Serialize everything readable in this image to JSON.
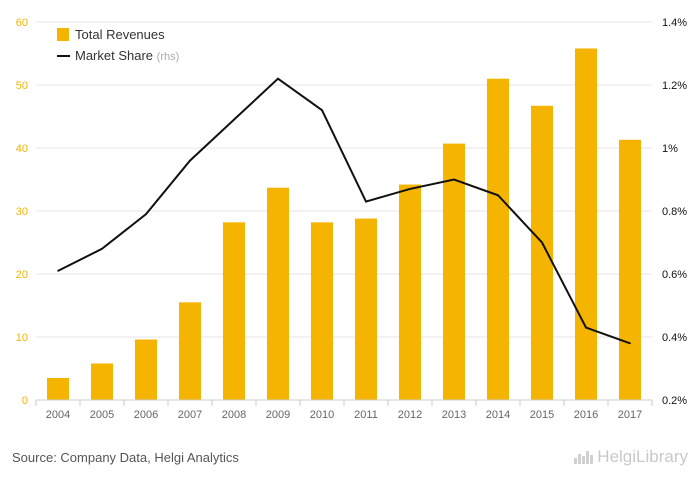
{
  "chart_data": {
    "type": "bar",
    "categories": [
      "2004",
      "2005",
      "2006",
      "2007",
      "2008",
      "2009",
      "2010",
      "2011",
      "2012",
      "2013",
      "2014",
      "2015",
      "2016",
      "2017"
    ],
    "series": [
      {
        "name": "Total Revenues",
        "type": "bar",
        "axis": "left",
        "color": "#f5b400",
        "values": [
          3.5,
          5.8,
          9.6,
          15.5,
          28.2,
          33.7,
          28.2,
          28.8,
          34.2,
          40.7,
          51.0,
          46.7,
          55.8,
          41.3
        ]
      },
      {
        "name": "Market Share",
        "name_suffix": "(rhs)",
        "type": "line",
        "axis": "right",
        "color": "#111111",
        "values": [
          0.61,
          0.68,
          0.79,
          0.96,
          1.09,
          1.22,
          1.12,
          0.83,
          0.87,
          0.9,
          0.85,
          0.7,
          0.43,
          0.38
        ]
      }
    ],
    "ylim": [
      0,
      60
    ],
    "y_ticks": [
      0,
      10,
      20,
      30,
      40,
      50,
      60
    ],
    "y2lim": [
      0.2,
      1.4
    ],
    "y2_ticks": [
      "0.2%",
      "0.4%",
      "0.6%",
      "0.8%",
      "1%",
      "1.2%",
      "1.4%"
    ],
    "grid": true,
    "legend_position": "top-left",
    "left_axis_color": "#f5b400",
    "right_axis_color": "#111111"
  },
  "footer": {
    "source": "Source: Company Data, Helgi Analytics",
    "logo": "HelgiLibrary"
  }
}
